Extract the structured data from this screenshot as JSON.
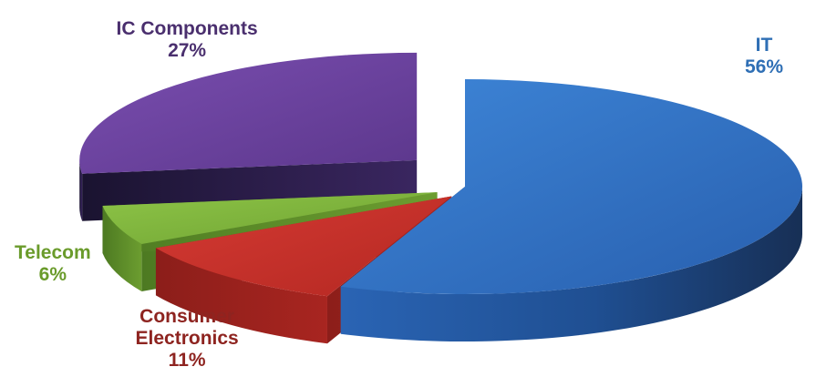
{
  "chart_data": {
    "type": "pie",
    "style": "3d-exploded",
    "legend": "none",
    "slices": [
      {
        "label": "IT",
        "value": 56,
        "value_label": "56%",
        "color": "#2f6fc4",
        "label_color": "#2f6fb5"
      },
      {
        "label": "Consumer Electronics",
        "label_lines": [
          "Consumer",
          "Electronics"
        ],
        "value": 11,
        "value_label": "11%",
        "color": "#c4302a",
        "label_color": "#8e2420"
      },
      {
        "label": "Telecom",
        "value": 6,
        "value_label": "6%",
        "color": "#7fb43c",
        "label_color": "#6a9b2b"
      },
      {
        "label": "IC Components",
        "value": 27,
        "value_label": "27%",
        "color": "#6a3f9e",
        "label_color": "#4a2f6e"
      }
    ]
  }
}
